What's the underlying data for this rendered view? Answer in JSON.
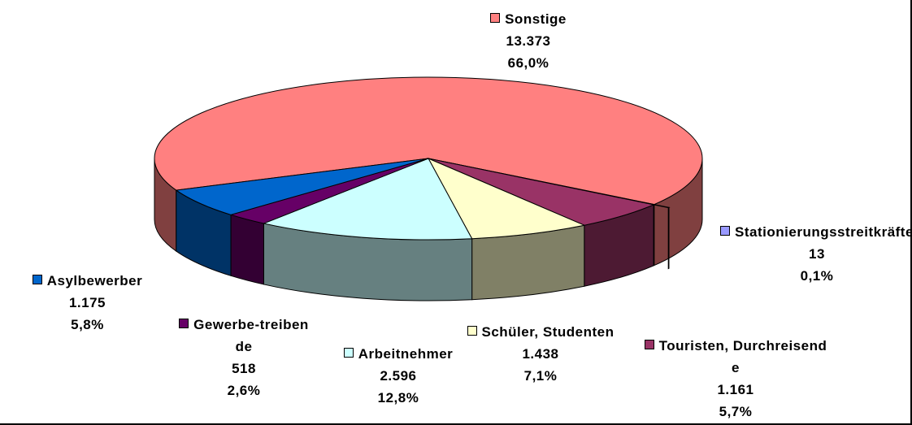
{
  "chart_data": {
    "type": "pie3d",
    "categories": [
      "Sonstige",
      "Stationierungsstreitkräfte",
      "Touristen, Durchreisende",
      "Schüler, Studenten",
      "Arbeitnehmer",
      "Gewerbe-treibende",
      "Asylbewerber"
    ],
    "values": [
      13373,
      13,
      1161,
      1438,
      2596,
      518,
      1175
    ],
    "value_labels": [
      "13.373",
      "13",
      "1.161",
      "1.438",
      "2.596",
      "518",
      "1.175"
    ],
    "percent_labels": [
      "66,0%",
      "0,1%",
      "5,7%",
      "7,1%",
      "12,8%",
      "2,6%",
      "5,8%"
    ],
    "colors": [
      "#ff8080",
      "#9999ff",
      "#993366",
      "#ffffcc",
      "#ccffff",
      "#660066",
      "#0066cc"
    ],
    "exploded": [
      1
    ]
  }
}
